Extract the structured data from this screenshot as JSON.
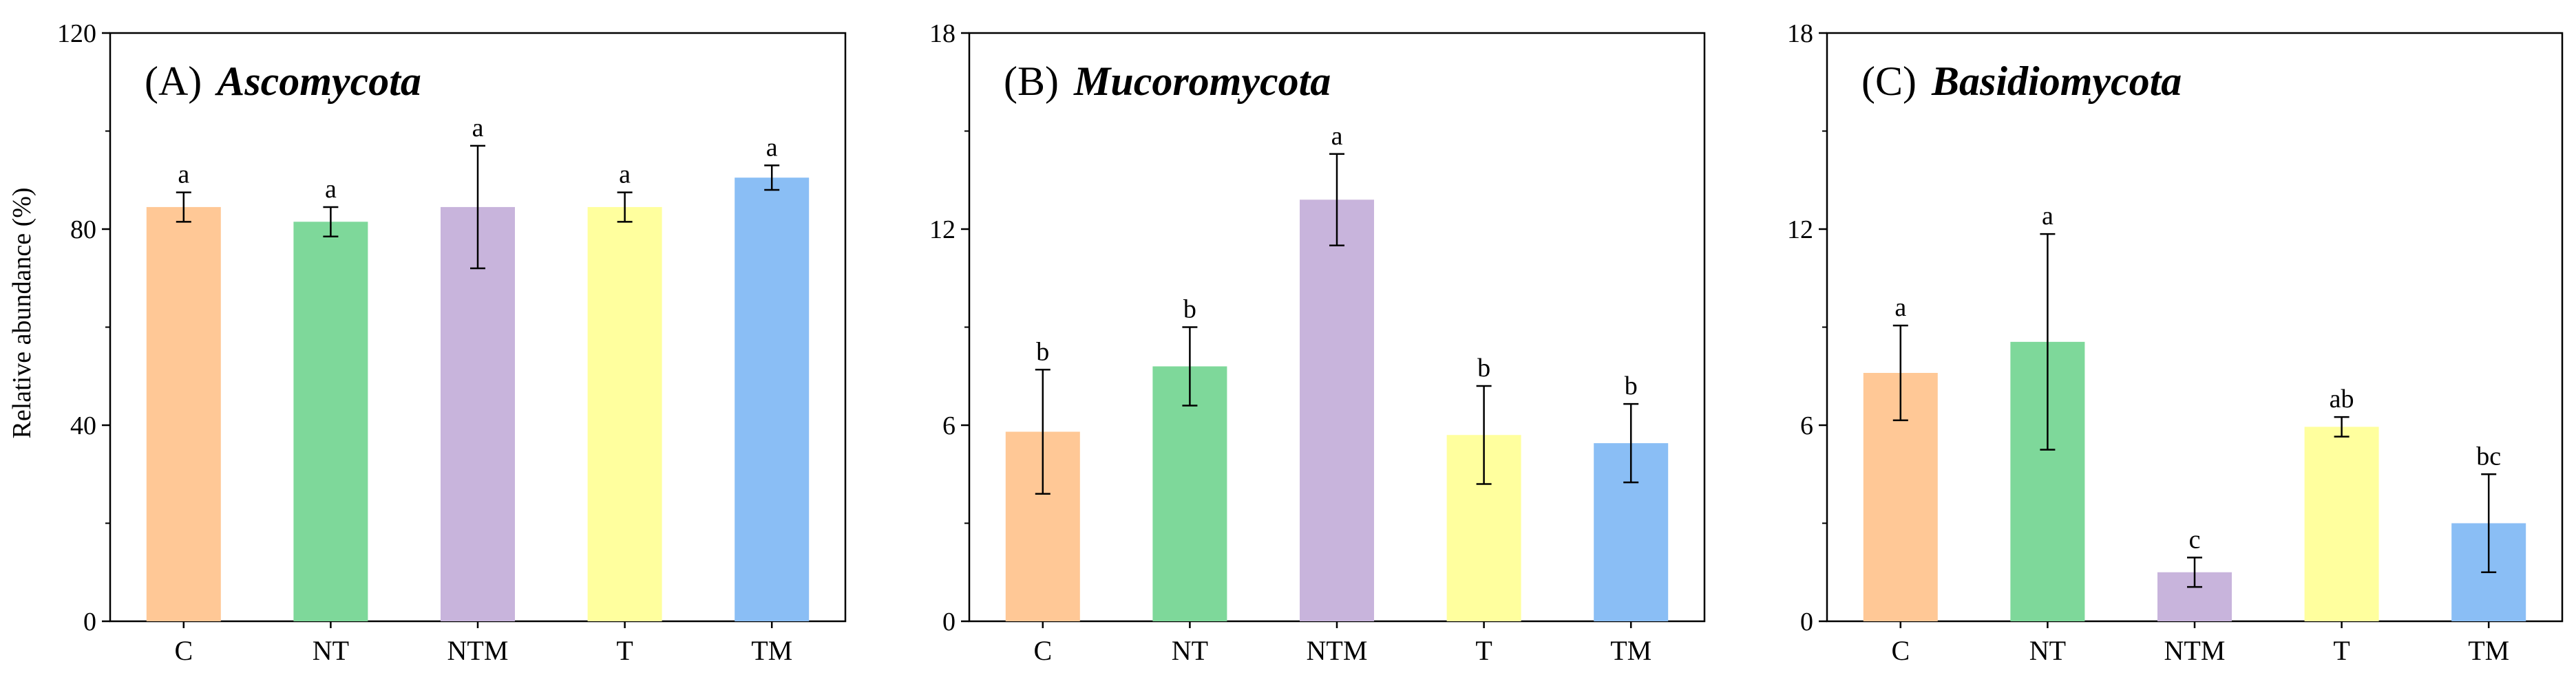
{
  "ylabel": "Relative abundance (%)",
  "chart_data": [
    {
      "type": "bar",
      "panel_tag": "(A)",
      "title": "Ascomycota",
      "categories": [
        "C",
        "NT",
        "NTM",
        "T",
        "TM"
      ],
      "values": [
        84.5,
        81.5,
        84.5,
        84.5,
        90.5
      ],
      "errors": [
        3,
        3,
        12.5,
        3,
        2.5
      ],
      "letters": [
        "a",
        "a",
        "a",
        "a",
        "a"
      ],
      "colors": [
        "#FFC896",
        "#7ED89A",
        "#C8B4DC",
        "#FFFF9E",
        "#8ABEF5"
      ],
      "ylim": [
        0,
        120
      ],
      "yticks": [
        "0",
        "40",
        "80",
        "120"
      ]
    },
    {
      "type": "bar",
      "panel_tag": "(B)",
      "title": "Mucoromycota",
      "categories": [
        "C",
        "NT",
        "NTM",
        "T",
        "TM"
      ],
      "values": [
        5.8,
        7.8,
        12.9,
        5.7,
        5.45
      ],
      "errors": [
        1.9,
        1.2,
        1.4,
        1.5,
        1.2
      ],
      "letters": [
        "b",
        "b",
        "a",
        "b",
        "b"
      ],
      "colors": [
        "#FFC896",
        "#7ED89A",
        "#C8B4DC",
        "#FFFF9E",
        "#8ABEF5"
      ],
      "ylim": [
        0,
        18
      ],
      "yticks": [
        "0",
        "6",
        "12",
        "18"
      ]
    },
    {
      "type": "bar",
      "panel_tag": "(C)",
      "title": "Basidiomycota",
      "categories": [
        "C",
        "NT",
        "NTM",
        "T",
        "TM"
      ],
      "values": [
        7.6,
        8.55,
        1.5,
        5.95,
        3.0
      ],
      "errors": [
        1.45,
        3.3,
        0.45,
        0.3,
        1.5
      ],
      "letters": [
        "a",
        "a",
        "c",
        "ab",
        "bc"
      ],
      "colors": [
        "#FFC896",
        "#7ED89A",
        "#C8B4DC",
        "#FFFF9E",
        "#8ABEF5"
      ],
      "ylim": [
        0,
        18
      ],
      "yticks": [
        "0",
        "6",
        "12",
        "18"
      ]
    }
  ]
}
